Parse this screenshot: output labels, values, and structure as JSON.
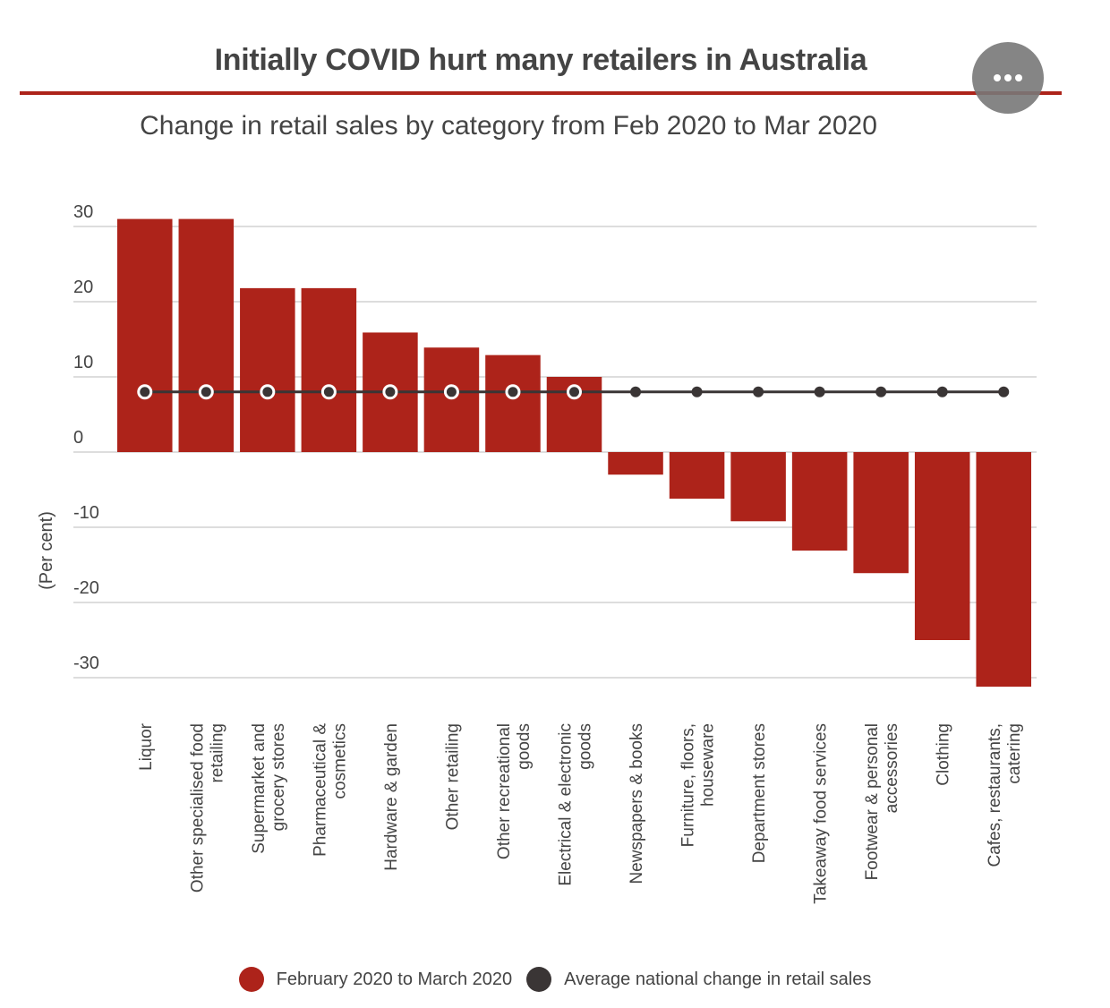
{
  "header": {
    "title": "Initially COVID hurt many retailers in Australia",
    "menu_icon": "more-horizontal-icon"
  },
  "colors": {
    "accent": "#ad231a",
    "bar": "#ad231a",
    "avg_line": "#3a3535",
    "grid": "#dddddd",
    "menu_button": "#7a7a7a"
  },
  "chart_data": {
    "type": "bar",
    "title": "Change in retail sales by category from Feb 2020 to Mar 2020",
    "xlabel": "",
    "ylabel": "(Per cent)",
    "ylim": [
      -34,
      32
    ],
    "yticks": [
      30,
      20,
      10,
      0,
      -10,
      -20,
      -30
    ],
    "grid": true,
    "legend_position": "bottom",
    "categories": [
      "Liquor",
      "Other specialised food retailing",
      "Supermarket and grocery stores",
      "Pharmaceutical & cosmetics",
      "Hardware & garden",
      "Other retailing",
      "Other recreational goods",
      "Electrical & electronic goods",
      "Newspapers & books",
      "Furniture, floors, houseware",
      "Department stores",
      "Takeaway food services",
      "Footwear & personal accessories",
      "Clothing",
      "Cafes, restaurants, catering"
    ],
    "category_label_lines": [
      [
        "Liquor"
      ],
      [
        "Other specialised food",
        "retailing"
      ],
      [
        "Supermarket and",
        "grocery stores"
      ],
      [
        "Pharmaceutical &",
        "cosmetics"
      ],
      [
        "Hardware & garden"
      ],
      [
        "Other retailing"
      ],
      [
        "Other recreational",
        "goods"
      ],
      [
        "Electrical & electronic",
        "goods"
      ],
      [
        "Newspapers & books"
      ],
      [
        "Furniture, floors,",
        "houseware"
      ],
      [
        "Department stores"
      ],
      [
        "Takeaway food services"
      ],
      [
        "Footwear & personal",
        "accessories"
      ],
      [
        "Clothing"
      ],
      [
        "Cafes, restaurants,",
        "catering"
      ]
    ],
    "series": [
      {
        "name": "February 2020 to March 2020",
        "type": "bar",
        "color": "#ad231a",
        "values": [
          31,
          31,
          21.8,
          21.8,
          15.9,
          13.9,
          12.9,
          10,
          -3,
          -6.2,
          -9.2,
          -13.1,
          -16.1,
          -25,
          -31.2
        ]
      },
      {
        "name": "Average national change in retail sales",
        "type": "line",
        "color": "#3a3535",
        "values": [
          8,
          8,
          8,
          8,
          8,
          8,
          8,
          8,
          8,
          8,
          8,
          8,
          8,
          8,
          8
        ]
      }
    ]
  },
  "legend": {
    "items": [
      {
        "label": "February 2020 to March 2020",
        "color": "#ad231a"
      },
      {
        "label": "Average national change in retail sales",
        "color": "#3a3535"
      }
    ]
  }
}
